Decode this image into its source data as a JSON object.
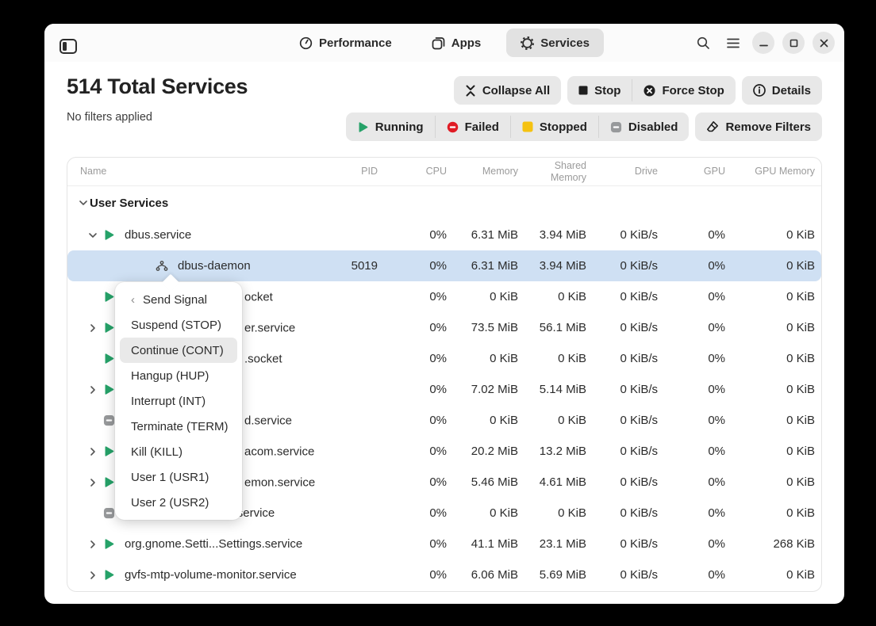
{
  "header": {
    "tabs": [
      {
        "label": "Performance"
      },
      {
        "label": "Apps"
      },
      {
        "label": "Services"
      }
    ]
  },
  "toolbar": {
    "title": "514 Total Services",
    "subtitle": "No filters applied",
    "collapse_all": "Collapse All",
    "stop": "Stop",
    "force_stop": "Force Stop",
    "details": "Details",
    "filters": [
      {
        "label": "Running",
        "color": "#26a269"
      },
      {
        "label": "Failed",
        "color": "#e01b24"
      },
      {
        "label": "Stopped",
        "color": "#f5c211"
      },
      {
        "label": "Disabled",
        "color": "#97999b"
      }
    ],
    "remove_filters": "Remove Filters",
    "selected_row_color": "#cfe0f3"
  },
  "table": {
    "columns": [
      "Name",
      "PID",
      "CPU",
      "Memory",
      "Shared Memory",
      "Drive",
      "GPU",
      "GPU Memory"
    ],
    "rows": [
      {
        "type": "group",
        "name": "User Services",
        "chevron": "down"
      },
      {
        "name": "dbus.service",
        "chevron": "down",
        "icon": "play",
        "pid": "",
        "cpu": "0%",
        "memory": "6.31 MiB",
        "shared": "3.94 MiB",
        "drive": "0 KiB/s",
        "gpu": "0%",
        "gpu_memory": "0 KiB"
      },
      {
        "name": "dbus-daemon",
        "icon": "process",
        "level": "child",
        "selected": true,
        "pid": "5019",
        "cpu": "0%",
        "memory": "6.31 MiB",
        "shared": "3.94 MiB",
        "drive": "0 KiB/s",
        "gpu": "0%",
        "gpu_memory": "0 KiB"
      },
      {
        "name_fragment": "ocket",
        "icon": "play",
        "pid": "",
        "cpu": "0%",
        "memory": "0 KiB",
        "shared": "0 KiB",
        "drive": "0 KiB/s",
        "gpu": "0%",
        "gpu_memory": "0 KiB"
      },
      {
        "name_fragment": "er.service",
        "chevron": "right",
        "icon": "play",
        "pid": "",
        "cpu": "0%",
        "memory": "73.5 MiB",
        "shared": "56.1 MiB",
        "drive": "0 KiB/s",
        "gpu": "0%",
        "gpu_memory": "0 KiB"
      },
      {
        "name_fragment": ".socket",
        "icon": "play",
        "pid": "",
        "cpu": "0%",
        "memory": "0 KiB",
        "shared": "0 KiB",
        "drive": "0 KiB/s",
        "gpu": "0%",
        "gpu_memory": "0 KiB"
      },
      {
        "name_fragment": "",
        "chevron": "right",
        "icon": "play",
        "pid": "",
        "cpu": "0%",
        "memory": "7.02 MiB",
        "shared": "5.14 MiB",
        "drive": "0 KiB/s",
        "gpu": "0%",
        "gpu_memory": "0 KiB"
      },
      {
        "name_fragment": "d.service",
        "icon": "disabled",
        "pid": "",
        "cpu": "0%",
        "memory": "0 KiB",
        "shared": "0 KiB",
        "drive": "0 KiB/s",
        "gpu": "0%",
        "gpu_memory": "0 KiB"
      },
      {
        "name_fragment": "acom.service",
        "chevron": "right",
        "icon": "play",
        "pid": "",
        "cpu": "0%",
        "memory": "20.2 MiB",
        "shared": "13.2 MiB",
        "drive": "0 KiB/s",
        "gpu": "0%",
        "gpu_memory": "0 KiB"
      },
      {
        "name_fragment": "emon.service",
        "chevron": "right",
        "icon": "play",
        "pid": "",
        "cpu": "0%",
        "memory": "5.46 MiB",
        "shared": "4.61 MiB",
        "drive": "0 KiB/s",
        "gpu": "0%",
        "gpu_memory": "0 KiB"
      },
      {
        "name": "update-notifier-crash.service",
        "icon": "disabled",
        "pid": "",
        "cpu": "0%",
        "memory": "0 KiB",
        "shared": "0 KiB",
        "drive": "0 KiB/s",
        "gpu": "0%",
        "gpu_memory": "0 KiB"
      },
      {
        "name": "org.gnome.Setti...Settings.service",
        "chevron": "right",
        "icon": "play",
        "pid": "",
        "cpu": "0%",
        "memory": "41.1 MiB",
        "shared": "23.1 MiB",
        "drive": "0 KiB/s",
        "gpu": "0%",
        "gpu_memory": "268 KiB"
      },
      {
        "name": "gvfs-mtp-volume-monitor.service",
        "chevron": "right",
        "icon": "play",
        "pid": "",
        "cpu": "0%",
        "memory": "6.06 MiB",
        "shared": "5.69 MiB",
        "drive": "0 KiB/s",
        "gpu": "0%",
        "gpu_memory": "0 KiB"
      }
    ]
  },
  "menu": {
    "header": "Send Signal",
    "items": [
      "Suspend (STOP)",
      "Continue (CONT)",
      "Hangup (HUP)",
      "Interrupt (INT)",
      "Terminate (TERM)",
      "Kill (KILL)",
      "User 1 (USR1)",
      "User 2 (USR2)"
    ],
    "highlighted": "Continue (CONT)"
  }
}
